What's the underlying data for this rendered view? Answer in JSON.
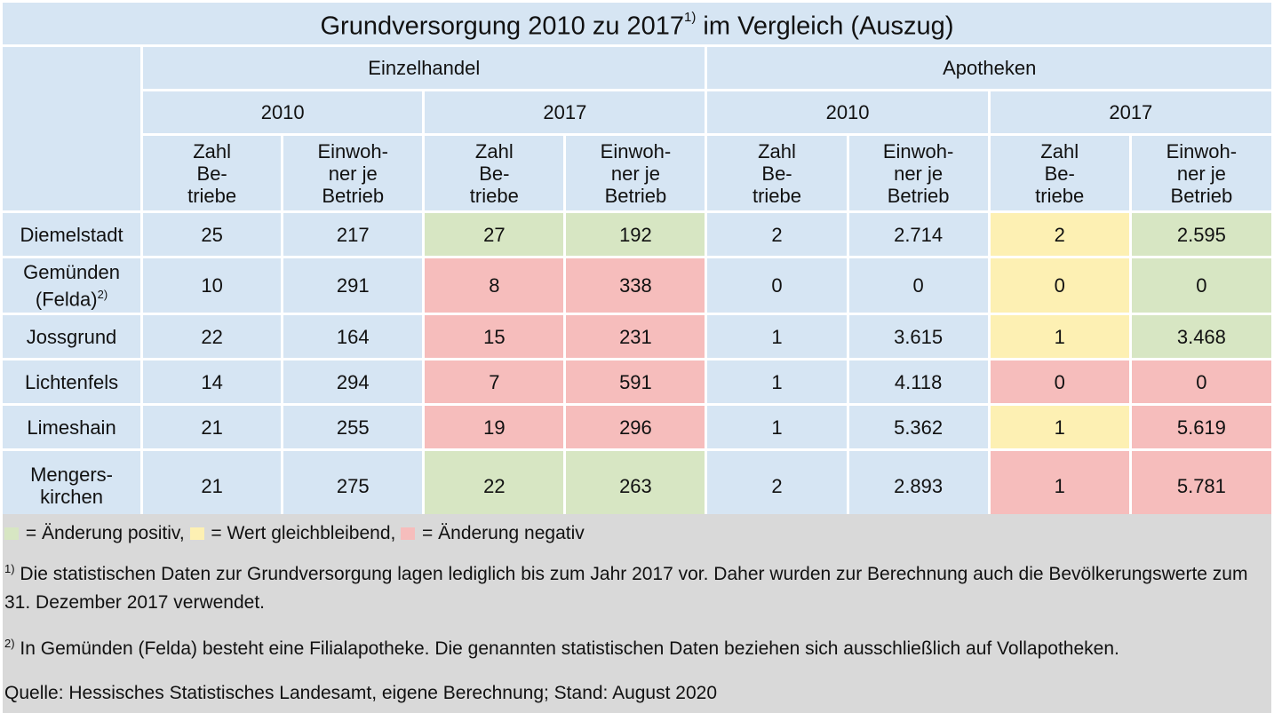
{
  "title": {
    "text": "Grundversorgung 2010 zu 2017",
    "sup": "1)",
    "suffix": " im Vergleich (Auszug)"
  },
  "groups": [
    "Einzelhandel",
    "Apotheken"
  ],
  "years": [
    "2010",
    "2017",
    "2010",
    "2017"
  ],
  "col_headers": {
    "zahl": [
      "Zahl",
      "Be-",
      "triebe"
    ],
    "einwohner": [
      "Einwoh-",
      "ner je",
      "Betrieb"
    ]
  },
  "colors": {
    "positive": "#d7e6c3",
    "neutral": "#fdf0b3",
    "negative": "#f6bdbc",
    "base": "#d6e5f3"
  },
  "rows": [
    {
      "name": "Diemelstadt",
      "name_sup": "",
      "values": [
        "25",
        "217",
        "27",
        "192",
        "2",
        "2.714",
        "2",
        "2.595"
      ],
      "status": [
        "",
        "",
        "positive",
        "positive",
        "",
        "",
        "neutral",
        "positive"
      ]
    },
    {
      "name": "Gemünden",
      "name2": "(Felda)",
      "name_sup": "2)",
      "values": [
        "10",
        "291",
        "8",
        "338",
        "0",
        "0",
        "0",
        "0"
      ],
      "status": [
        "",
        "",
        "negative",
        "negative",
        "",
        "",
        "neutral",
        "positive"
      ]
    },
    {
      "name": "Jossgrund",
      "name_sup": "",
      "values": [
        "22",
        "164",
        "15",
        "231",
        "1",
        "3.615",
        "1",
        "3.468"
      ],
      "status": [
        "",
        "",
        "negative",
        "negative",
        "",
        "",
        "neutral",
        "positive"
      ]
    },
    {
      "name": "Lichtenfels",
      "name_sup": "",
      "values": [
        "14",
        "294",
        "7",
        "591",
        "1",
        "4.118",
        "0",
        "0"
      ],
      "status": [
        "",
        "",
        "negative",
        "negative",
        "",
        "",
        "negative",
        "negative"
      ]
    },
    {
      "name": "Limeshain",
      "name_sup": "",
      "values": [
        "21",
        "255",
        "19",
        "296",
        "1",
        "5.362",
        "1",
        "5.619"
      ],
      "status": [
        "",
        "",
        "negative",
        "negative",
        "",
        "",
        "neutral",
        "negative"
      ]
    },
    {
      "name": "Mengers-",
      "name2": "kirchen",
      "name_sup": "",
      "values": [
        "21",
        "275",
        "22",
        "263",
        "2",
        "2.893",
        "1",
        "5.781"
      ],
      "status": [
        "",
        "",
        "positive",
        "positive",
        "",
        "",
        "negative",
        "negative"
      ]
    }
  ],
  "legend": {
    "positive": "= Änderung positiv,",
    "neutral": "= Wert gleichbleibend,",
    "negative": "= Änderung negativ"
  },
  "footnotes": [
    {
      "mark": "1)",
      "text": " Die statistischen Daten zur Grundversorgung lagen lediglich bis zum Jahr 2017 vor. Daher wurden zur Berechnung auch die Bevölkerungswerte zum 31. Dezember 2017 verwendet."
    },
    {
      "mark": "2)",
      "text": " In Gemünden (Felda) besteht eine Filialapotheke. Die genannten statistischen Daten beziehen sich ausschließlich auf Vollapotheken."
    }
  ],
  "source": "Quelle: Hessisches Statistisches Landesamt, eigene Berechnung; Stand: August 2020"
}
